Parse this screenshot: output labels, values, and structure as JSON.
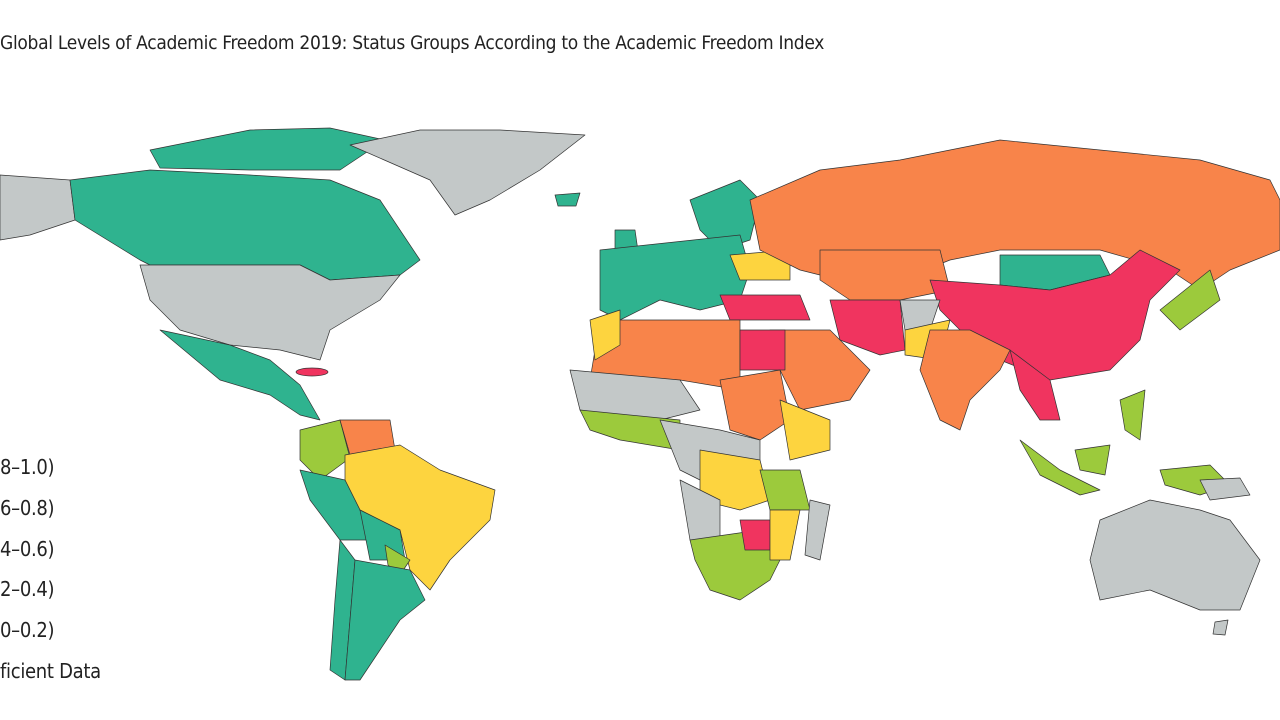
{
  "title": "Global Levels of Academic Freedom 2019: Status Groups According to the Academic Freedom Index",
  "legend": {
    "items": [
      {
        "label": "8–1.0)",
        "color": "#2fb38f"
      },
      {
        "label": "6–0.8)",
        "color": "#9cca3c"
      },
      {
        "label": "4–0.6)",
        "color": "#fdd43f"
      },
      {
        "label": "2–0.4)",
        "color": "#f8844a"
      },
      {
        "label": "0–0.2)",
        "color": "#f0345f"
      },
      {
        "label": "ficient Data",
        "color": "#c3c8c8"
      }
    ]
  }
}
